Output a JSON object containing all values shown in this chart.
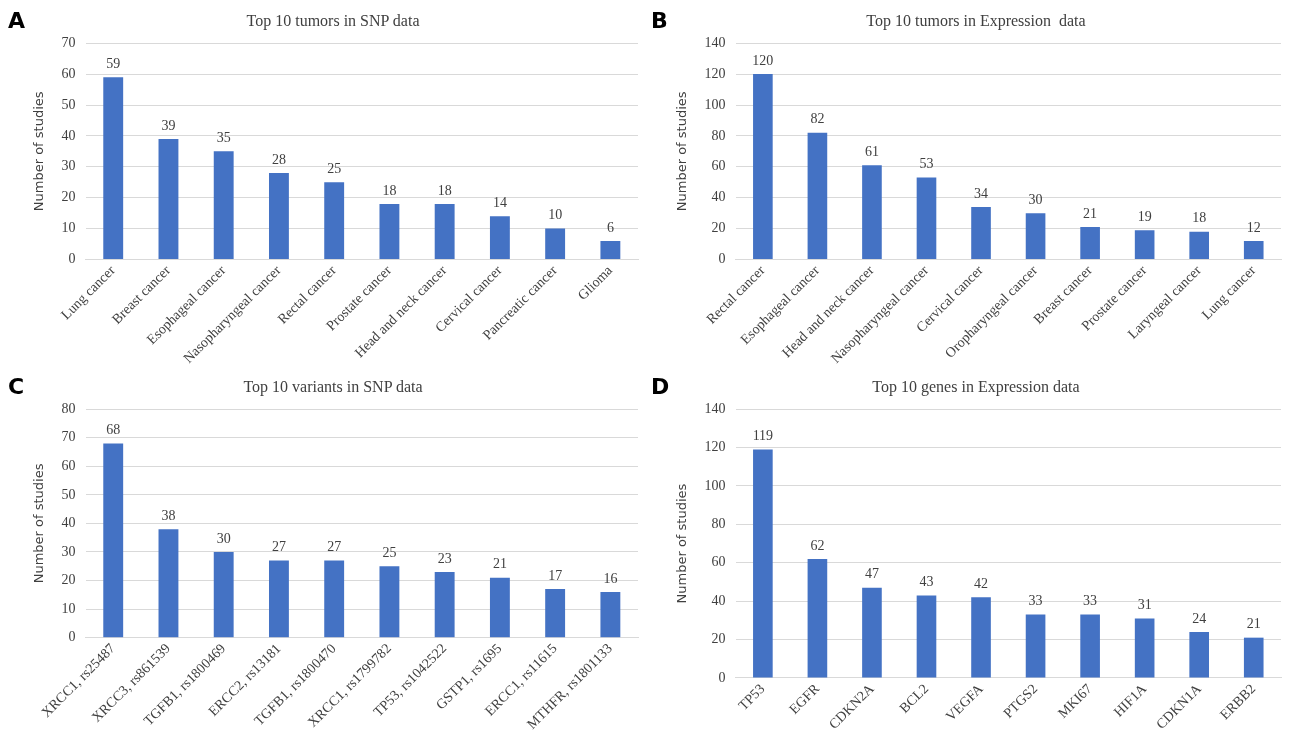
{
  "chart_data": [
    {
      "type": "bar",
      "title": "Top 10 tumors in SNP data",
      "ylabel": "Number of studies",
      "annotations": [
        "A"
      ],
      "categories": [
        "Lung cancer",
        "Breast cancer",
        "Esophageal cancer",
        "Nasopharyngeal cancer",
        "Rectal cancer",
        "Prostate cancer",
        "Head and neck cancer",
        "Cervical cancer",
        "Pancreatic cancer",
        "Glioma"
      ],
      "values": [
        59,
        39,
        35,
        28,
        25,
        18,
        18,
        14,
        10,
        6
      ],
      "color": "#4472c4",
      "ylim": [
        0,
        70
      ],
      "yticks": [
        0,
        10,
        20,
        30,
        40,
        50,
        60,
        70
      ],
      "grid": "y",
      "data_labels": true
    },
    {
      "type": "bar",
      "title": "Top 10 tumors in Expression  data",
      "ylabel": "Number of studies",
      "annotations": [
        "B"
      ],
      "categories": [
        "Rectal cancer",
        "Esophageal cancer",
        "Head and neck cancer",
        "Nasopharyngeal cancer",
        "Cervical cancer",
        "Oropharyngeal cancer",
        "Breast cancer",
        "Prostate cancer",
        "Laryngeal cancer",
        "Lung cancer"
      ],
      "values": [
        120,
        82,
        61,
        53,
        34,
        30,
        21,
        19,
        18,
        12
      ],
      "color": "#4472c4",
      "ylim": [
        0,
        140
      ],
      "yticks": [
        0,
        20,
        40,
        60,
        80,
        100,
        120,
        140
      ],
      "grid": "y",
      "data_labels": true
    },
    {
      "type": "bar",
      "title": "Top 10 variants in SNP data",
      "ylabel": "Number of studies",
      "annotations": [
        "C"
      ],
      "categories": [
        "XRCC1, rs25487",
        "XRCC3, rs861539",
        "TGFB1, rs1800469",
        "ERCC2, rs13181",
        "TGFB1, rs1800470",
        "XRCC1, rs1799782",
        "TP53, rs1042522",
        "GSTP1, rs1695",
        "ERCC1, rs11615",
        "MTHFR, rs1801133"
      ],
      "values": [
        68,
        38,
        30,
        27,
        27,
        25,
        23,
        21,
        17,
        16
      ],
      "color": "#4472c4",
      "ylim": [
        0,
        80
      ],
      "yticks": [
        0,
        10,
        20,
        30,
        40,
        50,
        60,
        70,
        80
      ],
      "grid": "y",
      "data_labels": true
    },
    {
      "type": "bar",
      "title": "Top 10 genes in Expression data",
      "ylabel": "Number of studies",
      "annotations": [
        "D"
      ],
      "categories": [
        "TP53",
        "EGFR",
        "CDKN2A",
        "BCL2",
        "VEGFA",
        "PTGS2",
        "MKI67",
        "HIF1A",
        "CDKN1A",
        "ERBB2"
      ],
      "values": [
        119,
        62,
        47,
        43,
        42,
        33,
        33,
        31,
        24,
        21
      ],
      "color": "#4472c4",
      "ylim": [
        0,
        140
      ],
      "yticks": [
        0,
        20,
        40,
        60,
        80,
        100,
        120,
        140
      ],
      "grid": "y",
      "data_labels": true
    }
  ]
}
